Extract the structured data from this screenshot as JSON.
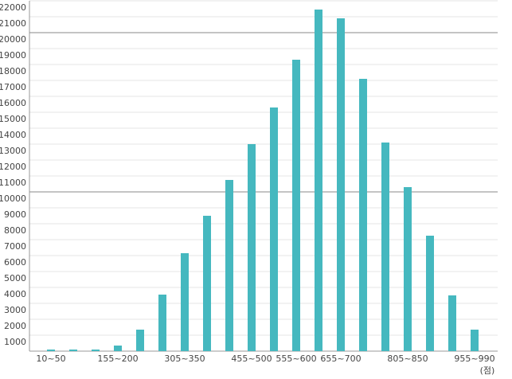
{
  "chart_data": {
    "type": "bar",
    "categories": [
      "10~50",
      null,
      null,
      "155~200",
      null,
      null,
      "305~350",
      null,
      null,
      "455~500",
      null,
      "555~600",
      null,
      "655~700",
      null,
      null,
      "805~850",
      null,
      null,
      "955~990"
    ],
    "values": [
      100,
      100,
      100,
      350,
      1350,
      3550,
      6150,
      8500,
      10750,
      13000,
      15300,
      18300,
      21450,
      20900,
      17100,
      13100,
      10300,
      7250,
      3500,
      1350
    ],
    "color": "#45b8bf",
    "ylim": [
      0,
      22000
    ],
    "yticks": [
      1000,
      2000,
      3000,
      4000,
      5000,
      6000,
      7000,
      8000,
      9000,
      10000,
      11000,
      12000,
      13000,
      14000,
      15000,
      16000,
      17000,
      18000,
      19000,
      20000,
      21000,
      22000
    ],
    "major_grid_lines": [
      10000,
      20000
    ],
    "grid": true,
    "x_unit": "(점)"
  }
}
